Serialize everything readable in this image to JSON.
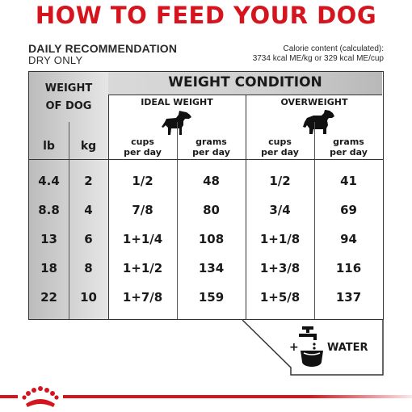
{
  "header": {
    "title": "HOW TO FEED YOUR DOG",
    "daily": "DAILY RECOMMENDATION",
    "dry": "DRY ONLY",
    "calorie_line1": "Calorie content (calculated):",
    "calorie_line2": "3734 kcal ME/kg or 329 kcal ME/cup"
  },
  "table": {
    "weight_of_dog_line1": "WEIGHT",
    "weight_of_dog_line2": "OF DOG",
    "weight_condition": "WEIGHT CONDITION",
    "ideal": "IDEAL WEIGHT",
    "overweight": "OVERWEIGHT",
    "lb": "lb",
    "kg": "kg",
    "cups_line1": "cups",
    "cups_line2": "per day",
    "grams_line1": "grams",
    "grams_line2": "per day",
    "rows": [
      {
        "lb": "4.4",
        "kg": "2",
        "ideal_cups": "1/2",
        "ideal_grams": "48",
        "over_cups": "1/2",
        "over_grams": "41"
      },
      {
        "lb": "8.8",
        "kg": "4",
        "ideal_cups": "7/8",
        "ideal_grams": "80",
        "over_cups": "3/4",
        "over_grams": "69"
      },
      {
        "lb": "13",
        "kg": "6",
        "ideal_cups": "1+1/4",
        "ideal_grams": "108",
        "over_cups": "1+1/8",
        "over_grams": "94"
      },
      {
        "lb": "18",
        "kg": "8",
        "ideal_cups": "1+1/2",
        "ideal_grams": "134",
        "over_cups": "1+3/8",
        "over_grams": "116"
      },
      {
        "lb": "22",
        "kg": "10",
        "ideal_cups": "1+7/8",
        "ideal_grams": "159",
        "over_cups": "1+5/8",
        "over_grams": "137"
      }
    ]
  },
  "water": {
    "plus": "+",
    "label": "WATER"
  },
  "icons": {
    "ideal_dog": "dog-icon",
    "overweight_dog": "fat-dog-icon",
    "water": "water-tap-bowl-icon",
    "logo": "crown-logo-icon"
  },
  "colors": {
    "accent": "#d6141e"
  }
}
